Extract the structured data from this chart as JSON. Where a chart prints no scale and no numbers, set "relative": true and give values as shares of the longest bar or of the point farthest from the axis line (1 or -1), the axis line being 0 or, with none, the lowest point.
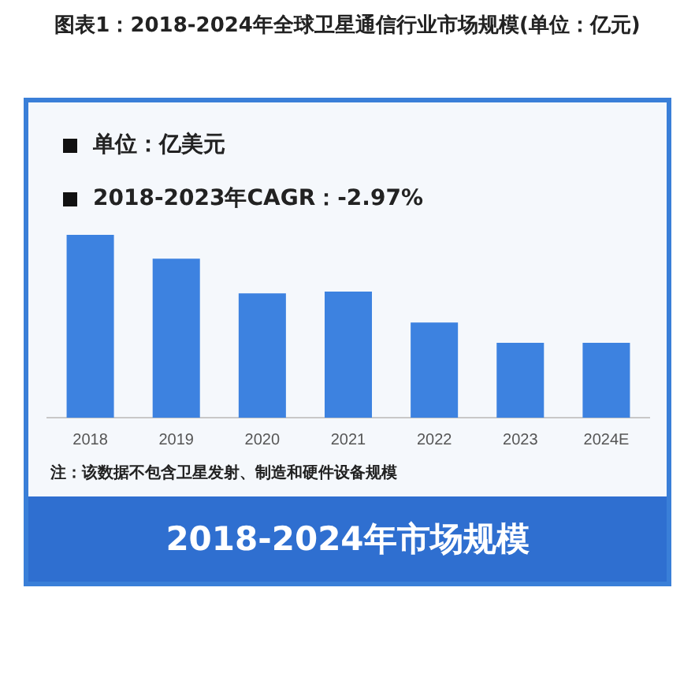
{
  "chart_data": {
    "type": "bar",
    "title": "图表1：2018-2024年全球卫星通信行业市场规模(单位：亿元)",
    "subtitle": "2018-2024年市场规模",
    "annotations": [
      "单位：亿美元",
      "2018-2023年CAGR：-2.97%",
      "注：该数据不包含卫星发射、制造和硬件设备规模"
    ],
    "categories": [
      "2018",
      "2019",
      "2020",
      "2021",
      "2022",
      "2023",
      "2024E"
    ],
    "values": [
      1,
      0.87,
      0.68,
      0.69,
      0.52,
      0.41,
      0.41
    ],
    "color": "#3d82e0",
    "relative": true,
    "grid": false,
    "legend": false
  }
}
